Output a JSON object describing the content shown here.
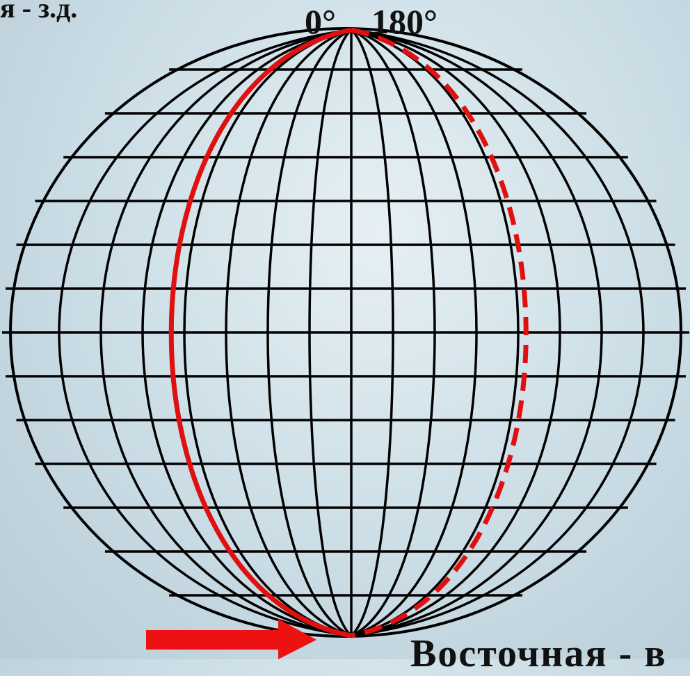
{
  "labels": {
    "top_left": "я - з.д.",
    "meridian_0": "0°",
    "meridian_180": "180°",
    "bottom_right": "Восточная - в"
  },
  "colors": {
    "grid": "#000000",
    "prime_meridian": "#e01010",
    "antimeridian": "#e01010",
    "arrow": "#ee1111"
  },
  "grid": {
    "parallels_count": 13,
    "meridians_count": 16
  },
  "arrow": {
    "direction": "right"
  }
}
